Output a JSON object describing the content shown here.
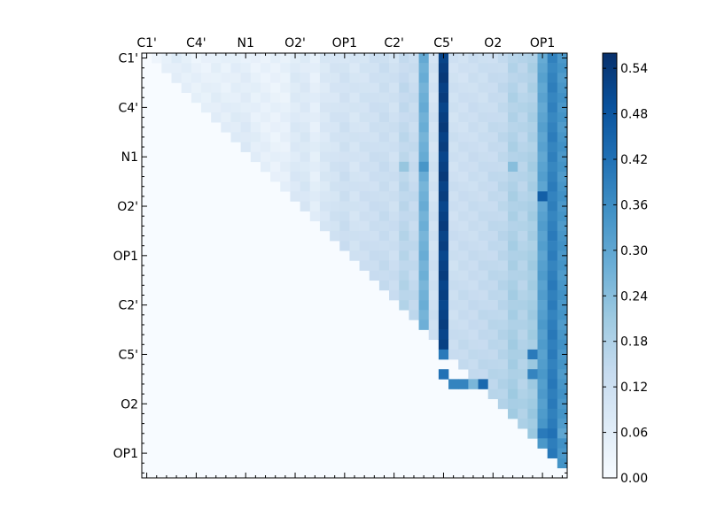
{
  "chart_data": {
    "type": "heatmap",
    "title": "",
    "xlabel": "",
    "ylabel": "",
    "grid": false,
    "colormap": "Blues",
    "colorscale": {
      "min_color": "#f7fbff",
      "max_color": "#08306b"
    },
    "n": 43,
    "x_tick_labels": [
      "C1'",
      "C4'",
      "N1",
      "O2'",
      "OP1",
      "C2'",
      "C5'",
      "O2",
      "OP1"
    ],
    "y_tick_labels": [
      "C1'",
      "C4'",
      "N1",
      "O2'",
      "OP1",
      "C2'",
      "C5'",
      "O2",
      "OP1"
    ],
    "tick_every": 5,
    "colorbar": {
      "vmin": 0.0,
      "vmax": 0.56,
      "ticks": [
        "0.00",
        "0.06",
        "0.12",
        "0.18",
        "0.24",
        "0.30",
        "0.36",
        "0.42",
        "0.48",
        "0.54"
      ],
      "tick_values": [
        0.0,
        0.06,
        0.12,
        0.18,
        0.24,
        0.3,
        0.36,
        0.42,
        0.48,
        0.54
      ]
    },
    "columns": [
      {
        "col": 0,
        "v0": 0.0,
        "v1": 0.0
      },
      {
        "col": 1,
        "v0": 0.02,
        "v1": 0.02
      },
      {
        "col": 2,
        "v0": 0.05,
        "v1": 0.04
      },
      {
        "col": 3,
        "v0": 0.06,
        "v1": 0.05
      },
      {
        "col": 4,
        "v0": 0.05,
        "v1": 0.05
      },
      {
        "col": 5,
        "v0": 0.04,
        "v1": 0.05
      },
      {
        "col": 6,
        "v0": 0.04,
        "v1": 0.05
      },
      {
        "col": 7,
        "v0": 0.05,
        "v1": 0.06
      },
      {
        "col": 8,
        "v0": 0.04,
        "v1": 0.06
      },
      {
        "col": 9,
        "v0": 0.05,
        "v1": 0.07
      },
      {
        "col": 10,
        "v0": 0.05,
        "v1": 0.08
      },
      {
        "col": 11,
        "v0": 0.04,
        "v1": 0.06
      },
      {
        "col": 12,
        "v0": 0.04,
        "v1": 0.05
      },
      {
        "col": 13,
        "v0": 0.04,
        "v1": 0.04
      },
      {
        "col": 14,
        "v0": 0.04,
        "v1": 0.05
      },
      {
        "col": 15,
        "v0": 0.07,
        "v1": 0.08
      },
      {
        "col": 16,
        "v0": 0.07,
        "v1": 0.09
      },
      {
        "col": 17,
        "v0": 0.05,
        "v1": 0.06
      },
      {
        "col": 18,
        "v0": 0.08,
        "v1": 0.09
      },
      {
        "col": 19,
        "v0": 0.09,
        "v1": 0.11
      },
      {
        "col": 20,
        "v0": 0.1,
        "v1": 0.13
      },
      {
        "col": 21,
        "v0": 0.09,
        "v1": 0.11
      },
      {
        "col": 22,
        "v0": 0.1,
        "v1": 0.12
      },
      {
        "col": 23,
        "v0": 0.11,
        "v1": 0.13
      },
      {
        "col": 24,
        "v0": 0.12,
        "v1": 0.14
      },
      {
        "col": 25,
        "v0": 0.11,
        "v1": 0.13
      },
      {
        "col": 26,
        "v0": 0.14,
        "v1": 0.17
      },
      {
        "col": 27,
        "v0": 0.13,
        "v1": 0.15
      },
      {
        "col": 28,
        "v0": 0.28,
        "v1": 0.27
      },
      {
        "col": 29,
        "v0": 0.1,
        "v1": 0.12
      },
      {
        "col": 30,
        "v0": 0.53,
        "v1": 0.52
      },
      {
        "col": 31,
        "v0": 0.11,
        "v1": 0.13
      },
      {
        "col": 32,
        "v0": 0.11,
        "v1": 0.14
      },
      {
        "col": 33,
        "v0": 0.12,
        "v1": 0.14
      },
      {
        "col": 34,
        "v0": 0.12,
        "v1": 0.15
      },
      {
        "col": 35,
        "v0": 0.13,
        "v1": 0.16
      },
      {
        "col": 36,
        "v0": 0.14,
        "v1": 0.17
      },
      {
        "col": 37,
        "v0": 0.17,
        "v1": 0.2
      },
      {
        "col": 38,
        "v0": 0.16,
        "v1": 0.18
      },
      {
        "col": 39,
        "v0": 0.18,
        "v1": 0.21
      },
      {
        "col": 40,
        "v0": 0.3,
        "v1": 0.33
      },
      {
        "col": 41,
        "v0": 0.38,
        "v1": 0.4
      },
      {
        "col": 42,
        "v0": 0.34,
        "v1": 0.34
      }
    ],
    "highlights": [
      {
        "row": 32,
        "col": 30,
        "value": 0.42
      },
      {
        "row": 30,
        "col": 30,
        "value": 0.4
      },
      {
        "row": 33,
        "col": 32,
        "value": 0.38
      },
      {
        "row": 33,
        "col": 31,
        "value": 0.38
      },
      {
        "row": 33,
        "col": 34,
        "value": 0.44
      },
      {
        "row": 33,
        "col": 33,
        "value": 0.26
      },
      {
        "row": 30,
        "col": 39,
        "value": 0.4
      },
      {
        "row": 32,
        "col": 39,
        "value": 0.38
      },
      {
        "row": 38,
        "col": 40,
        "value": 0.4
      },
      {
        "row": 38,
        "col": 41,
        "value": 0.42
      },
      {
        "row": 38,
        "col": 42,
        "value": 0.3
      },
      {
        "row": 14,
        "col": 40,
        "value": 0.46
      },
      {
        "row": 11,
        "col": 28,
        "value": 0.34
      },
      {
        "row": 11,
        "col": 37,
        "value": 0.24
      },
      {
        "row": 11,
        "col": 26,
        "value": 0.22
      }
    ]
  }
}
